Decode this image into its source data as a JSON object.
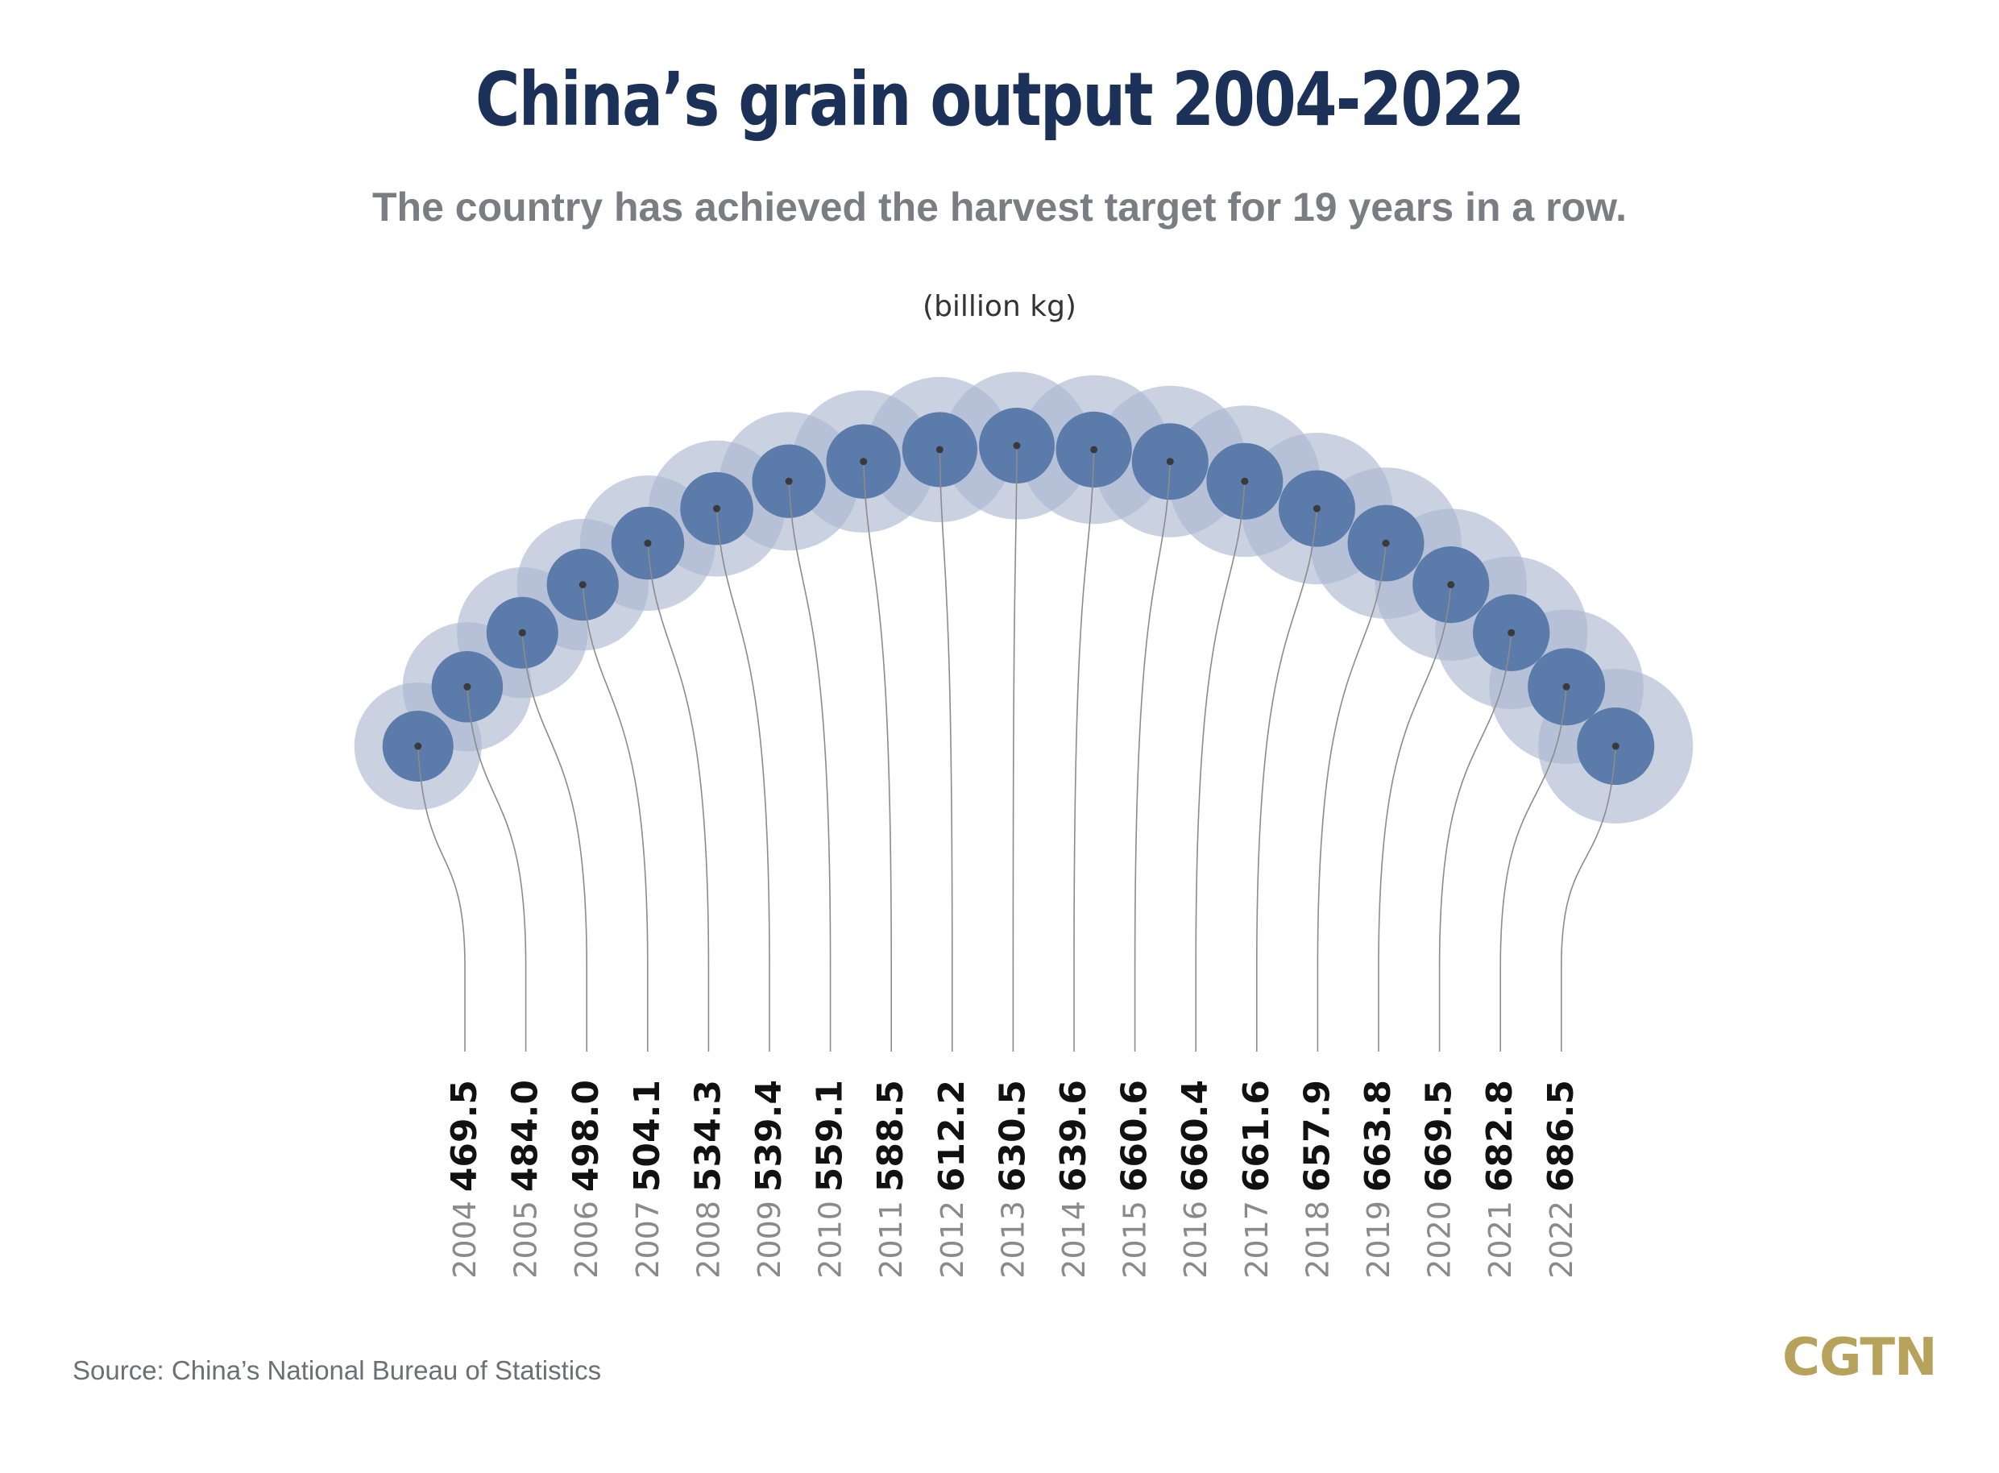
{
  "title": "China’s grain output 2004-2022",
  "subtitle": "The country has achieved the harvest target for 19 years in a row.",
  "unit_label": "(billion kg)",
  "source": "Source: China’s National Bureau of Statistics",
  "logo": "CGTN",
  "colors": {
    "title": "#1c3158",
    "inner_circle": "#5b7baa",
    "outer_circle": "#aab6d0",
    "logo": "#b6a25a"
  },
  "chart_data": {
    "type": "scatter",
    "title": "China’s grain output 2004-2022",
    "subtitle": "The country has achieved the harvest target for 19 years in a row.",
    "unit": "(billion kg)",
    "categories": [
      "2004",
      "2005",
      "2006",
      "2007",
      "2008",
      "2009",
      "2010",
      "2011",
      "2012",
      "2013",
      "2014",
      "2015",
      "2016",
      "2017",
      "2018",
      "2019",
      "2020",
      "2021",
      "2022"
    ],
    "values": [
      469.5,
      484.0,
      498.0,
      504.1,
      534.3,
      539.4,
      559.1,
      588.5,
      612.2,
      630.5,
      639.6,
      660.6,
      660.4,
      661.6,
      657.9,
      663.8,
      669.5,
      682.8,
      686.5
    ],
    "value_labels": [
      "469.5",
      "484.0",
      "498.0",
      "504.1",
      "534.3",
      "539.4",
      "559.1",
      "588.5",
      "612.2",
      "630.5",
      "639.6",
      "660.6",
      "660.4",
      "661.6",
      "657.9",
      "663.8",
      "669.5",
      "682.8",
      "686.5"
    ]
  }
}
